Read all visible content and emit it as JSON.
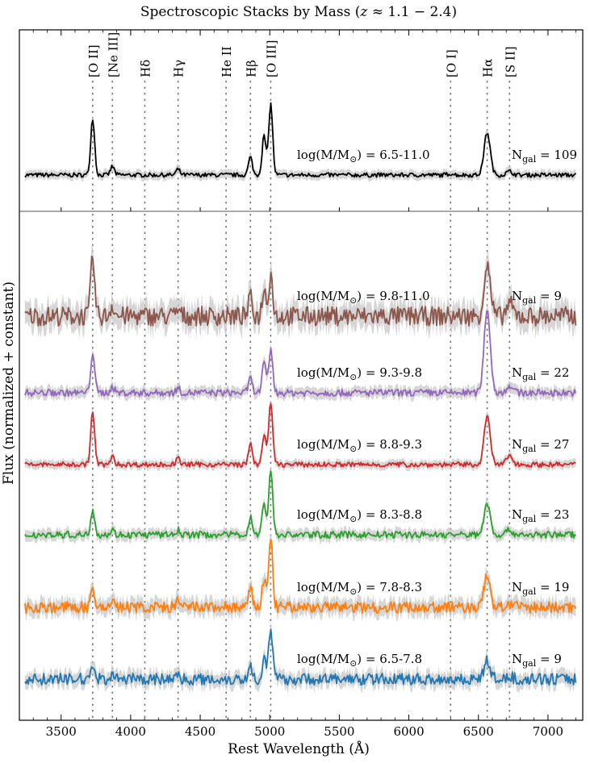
{
  "chart_data": {
    "type": "line",
    "title_prefix": "Spectroscopic Stacks by Mass (",
    "title_z": "z",
    "title_suffix": " ≈ 1.1 − 2.4)",
    "xlabel": "Rest Wavelength (Å)",
    "ylabel": "Flux (normalized + constant)",
    "xlim": [
      3200,
      7250
    ],
    "xticks": [
      3500,
      4000,
      4500,
      5000,
      5500,
      6000,
      6500,
      7000
    ],
    "xtick_labels": [
      "3500",
      "4000",
      "4500",
      "5000",
      "5500",
      "6000",
      "6500",
      "7000"
    ],
    "lines": [
      {
        "label": "[O II]",
        "wavelength": 3727
      },
      {
        "label": "[Ne III]",
        "wavelength": 3869
      },
      {
        "label": "Hδ",
        "wavelength": 4102
      },
      {
        "label": "Hγ",
        "wavelength": 4341
      },
      {
        "label": "He II",
        "wavelength": 4686
      },
      {
        "label": "Hβ",
        "wavelength": 4861
      },
      {
        "label": "[O III]",
        "wavelength": 5007
      },
      {
        "label": "[O I]",
        "wavelength": 6300
      },
      {
        "label": "Hα",
        "wavelength": 6563
      },
      {
        "label": "[S II]",
        "wavelength": 6724
      }
    ],
    "series": [
      {
        "mass_range": "6.5-11.0",
        "n_gal": "109",
        "color": "#000000",
        "panel": "top",
        "peaks": {
          "3727": 0.8,
          "3869": 0.12,
          "4341": 0.08,
          "4861": 0.25,
          "4959": 0.55,
          "5007": 1.0,
          "6563": 0.6,
          "6300": 0.02,
          "6724": 0.05
        },
        "noise": 0.03
      },
      {
        "mass_range": "9.8-11.0",
        "n_gal": "9",
        "color": "#8c564b",
        "panel": "bottom",
        "peaks": {
          "3727": 0.95,
          "3869": 0.2,
          "4341": 0.1,
          "4861": 0.3,
          "4959": 0.45,
          "5007": 0.7,
          "6563": 0.85,
          "6724": 0.2
        },
        "noise": 0.16
      },
      {
        "mass_range": "9.3-9.8",
        "n_gal": "22",
        "color": "#9467bd",
        "panel": "bottom",
        "peaks": {
          "3727": 0.7,
          "3869": 0.1,
          "4341": 0.08,
          "4861": 0.25,
          "4959": 0.5,
          "5007": 0.75,
          "6563": 1.45,
          "6724": 0.12
        },
        "noise": 0.06
      },
      {
        "mass_range": "8.8-9.3",
        "n_gal": "27",
        "color": "#d62728",
        "panel": "bottom",
        "peaks": {
          "3727": 1.05,
          "3869": 0.15,
          "4341": 0.12,
          "4861": 0.4,
          "4959": 0.6,
          "5007": 1.25,
          "6563": 0.95,
          "6724": 0.18
        },
        "noise": 0.05
      },
      {
        "mass_range": "8.3-8.8",
        "n_gal": "23",
        "color": "#2ca02c",
        "panel": "bottom",
        "peaks": {
          "3727": 0.45,
          "3869": 0.08,
          "4341": 0.08,
          "4861": 0.3,
          "4959": 0.55,
          "5007": 1.15,
          "6563": 0.55,
          "6724": 0.08
        },
        "noise": 0.06
      },
      {
        "mass_range": "7.8-8.3",
        "n_gal": "19",
        "color": "#ff7f0e",
        "panel": "bottom",
        "peaks": {
          "3727": 0.25,
          "3869": 0.15,
          "4341": 0.1,
          "4861": 0.3,
          "4959": 0.5,
          "5007": 1.2,
          "6563": 0.55,
          "6724": 0.06
        },
        "noise": 0.1
      },
      {
        "mass_range": "6.5-7.8",
        "n_gal": "9",
        "color": "#1f77b4",
        "panel": "bottom",
        "peaks": {
          "3727": 0.3,
          "3869": 0.12,
          "4341": 0.1,
          "4861": 0.3,
          "4959": 0.45,
          "5007": 1.1,
          "6563": 0.4,
          "6724": 0.05
        },
        "noise": 0.13
      }
    ]
  }
}
